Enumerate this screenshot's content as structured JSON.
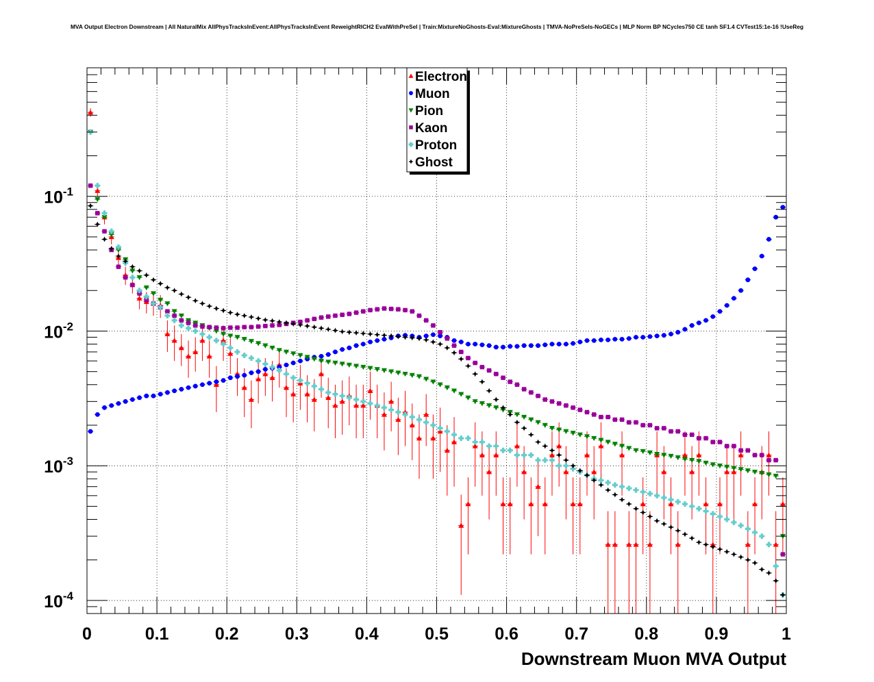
{
  "chart_data": {
    "type": "scatter",
    "title": "MVA Output Electron Downstream | All NaturalMix AllPhysTracksInEvent:AllPhysTracksInEvent ReweightRICH2 EvalWithPreSel | Train:MixtureNoGhosts-Eval:MixtureGhosts | TMVA-NoPreSels-NoGECs | MLP Norm BP NCycles750 CE tanh SF1.4 CVTest15:1e-16 !UseReg",
    "xlabel": "Downstream Muon MVA Output",
    "ylabel": "",
    "xlim": [
      0,
      1
    ],
    "ylim": [
      8e-05,
      0.9
    ],
    "y_scale": "log",
    "grid": true,
    "legend_position": "top-center",
    "x_tick_labels": [
      "0",
      "0.1",
      "0.2",
      "0.3",
      "0.4",
      "0.5",
      "0.6",
      "0.7",
      "0.8",
      "0.9",
      "1"
    ],
    "y_tick_labels": [
      {
        "base": "10",
        "exp": "-1",
        "value": 0.1
      },
      {
        "base": "10",
        "exp": "-2",
        "value": 0.01
      },
      {
        "base": "10",
        "exp": "-3",
        "value": 0.001
      },
      {
        "base": "10",
        "exp": "-4",
        "value": 0.0001
      }
    ],
    "x": [
      0.005,
      0.015,
      0.025,
      0.035,
      0.045,
      0.055,
      0.065,
      0.075,
      0.085,
      0.095,
      0.105,
      0.115,
      0.125,
      0.135,
      0.145,
      0.155,
      0.165,
      0.175,
      0.185,
      0.195,
      0.205,
      0.215,
      0.225,
      0.235,
      0.245,
      0.255,
      0.265,
      0.275,
      0.285,
      0.295,
      0.305,
      0.315,
      0.325,
      0.335,
      0.345,
      0.355,
      0.365,
      0.375,
      0.385,
      0.395,
      0.405,
      0.415,
      0.425,
      0.435,
      0.445,
      0.455,
      0.465,
      0.475,
      0.485,
      0.495,
      0.505,
      0.515,
      0.525,
      0.535,
      0.545,
      0.555,
      0.565,
      0.575,
      0.585,
      0.595,
      0.605,
      0.615,
      0.625,
      0.635,
      0.645,
      0.655,
      0.665,
      0.675,
      0.685,
      0.695,
      0.705,
      0.715,
      0.725,
      0.735,
      0.745,
      0.755,
      0.765,
      0.775,
      0.785,
      0.795,
      0.805,
      0.815,
      0.825,
      0.835,
      0.845,
      0.855,
      0.865,
      0.875,
      0.885,
      0.895,
      0.905,
      0.915,
      0.925,
      0.935,
      0.945,
      0.955,
      0.965,
      0.975,
      0.985,
      0.995
    ],
    "series": [
      {
        "name": "Electron",
        "color": "#ff0000",
        "marker": "triangle-up",
        "values": [
          0.42,
          0.11,
          0.07,
          0.05,
          0.035,
          0.026,
          0.022,
          0.0175,
          0.0165,
          0.016,
          0.0155,
          0.0095,
          0.0085,
          0.0075,
          0.0065,
          0.007,
          0.0085,
          0.0065,
          0.004,
          0.0085,
          0.0068,
          0.0048,
          0.0038,
          0.0031,
          0.0044,
          0.0048,
          0.0045,
          0.0056,
          0.0038,
          0.0034,
          0.0041,
          0.0034,
          0.0031,
          0.0048,
          0.0032,
          0.0028,
          0.003,
          0.0033,
          0.0028,
          0.0028,
          0.0036,
          0.0028,
          0.0024,
          0.003,
          0.0022,
          0.0025,
          0.002,
          0.0016,
          0.0024,
          0.0016,
          0.0018,
          0.0013,
          0.0015,
          0.00036,
          0.00052,
          0.0014,
          0.0012,
          0.0009,
          0.0012,
          0.00052,
          0.00052,
          0.0014,
          0.0009,
          0.00052,
          0.0007,
          0.00052,
          0.0012,
          0.0014,
          0.0009,
          0.00052,
          0.00052,
          0.0012,
          0.0009,
          0.0014,
          0.00026,
          0.00026,
          0.0012,
          0.00026,
          0.00026,
          0.00052,
          0.00026,
          0.0012,
          0.0009,
          0.00052,
          0.00026,
          0.0012,
          0.0009,
          0.0012,
          0.00052,
          0.00026,
          0.00052,
          0.0009,
          0.0009,
          0.0012,
          0.00026,
          0.00052,
          0.0009,
          0.0012,
          0.00026,
          0.00052
        ],
        "errors": [
          0.03,
          0.01,
          0.008,
          0.006,
          0.005,
          0.004,
          0.003,
          0.003,
          0.003,
          0.003,
          0.003,
          0.0025,
          0.0025,
          0.002,
          0.002,
          0.002,
          0.0025,
          0.002,
          0.0015,
          0.0025,
          0.002,
          0.0015,
          0.0015,
          0.0012,
          0.0015,
          0.0015,
          0.0015,
          0.0018,
          0.0015,
          0.0013,
          0.0015,
          0.0013,
          0.0013,
          0.0016,
          0.0013,
          0.0012,
          0.0013,
          0.0013,
          0.0012,
          0.0012,
          0.0014,
          0.0012,
          0.0011,
          0.0012,
          0.001,
          0.0011,
          0.0009,
          0.0008,
          0.001,
          0.0008,
          0.0009,
          0.0007,
          0.0008,
          0.00025,
          0.0003,
          0.0007,
          0.0006,
          0.0005,
          0.0006,
          0.0003,
          0.0003,
          0.0007,
          0.0005,
          0.0003,
          0.0004,
          0.0003,
          0.0006,
          0.0007,
          0.0005,
          0.0003,
          0.0003,
          0.0006,
          0.0005,
          0.0007,
          0.0002,
          0.0002,
          0.0006,
          0.0002,
          0.0002,
          0.0003,
          0.0002,
          0.0006,
          0.0005,
          0.0003,
          0.0002,
          0.0006,
          0.0005,
          0.0006,
          0.0003,
          0.0002,
          0.0003,
          0.0005,
          0.0005,
          0.0006,
          0.0002,
          0.0003,
          0.0005,
          0.0006,
          0.0002,
          0.0003
        ]
      },
      {
        "name": "Muon",
        "color": "#0000ff",
        "marker": "circle",
        "values": [
          0.0018,
          0.0024,
          0.0027,
          0.0028,
          0.0029,
          0.003,
          0.0031,
          0.0032,
          0.0033,
          0.0033,
          0.0034,
          0.0035,
          0.0036,
          0.0037,
          0.0038,
          0.0039,
          0.004,
          0.0041,
          0.0042,
          0.0043,
          0.0045,
          0.0046,
          0.0047,
          0.0049,
          0.005,
          0.0052,
          0.0053,
          0.0054,
          0.0056,
          0.0058,
          0.006,
          0.0062,
          0.0064,
          0.0065,
          0.0067,
          0.007,
          0.0073,
          0.0075,
          0.0078,
          0.008,
          0.0083,
          0.0085,
          0.0087,
          0.0089,
          0.0092,
          0.0093,
          0.0092,
          0.009,
          0.0092,
          0.0094,
          0.0092,
          0.009,
          0.0085,
          0.0083,
          0.008,
          0.008,
          0.0079,
          0.0078,
          0.0076,
          0.0076,
          0.0077,
          0.0077,
          0.0078,
          0.0078,
          0.0078,
          0.0079,
          0.008,
          0.008,
          0.008,
          0.0081,
          0.0083,
          0.0085,
          0.0085,
          0.0086,
          0.0086,
          0.0087,
          0.0087,
          0.0088,
          0.009,
          0.009,
          0.0091,
          0.0092,
          0.0093,
          0.0095,
          0.0098,
          0.0103,
          0.011,
          0.0115,
          0.012,
          0.0128,
          0.014,
          0.0155,
          0.0175,
          0.02,
          0.024,
          0.029,
          0.036,
          0.048,
          0.07,
          0.083
        ]
      },
      {
        "name": "Pion",
        "color": "#008000",
        "marker": "triangle-down",
        "values": [
          0.3,
          0.095,
          0.07,
          0.052,
          0.04,
          0.034,
          0.028,
          0.025,
          0.021,
          0.019,
          0.017,
          0.016,
          0.014,
          0.013,
          0.012,
          0.0115,
          0.011,
          0.0105,
          0.01,
          0.0095,
          0.0092,
          0.009,
          0.0087,
          0.0084,
          0.0081,
          0.0078,
          0.0075,
          0.0072,
          0.007,
          0.0068,
          0.0066,
          0.0064,
          0.0062,
          0.006,
          0.0059,
          0.0058,
          0.0057,
          0.0056,
          0.0055,
          0.0054,
          0.0053,
          0.0052,
          0.0051,
          0.005,
          0.0049,
          0.0048,
          0.0047,
          0.0046,
          0.0044,
          0.0042,
          0.004,
          0.0038,
          0.0036,
          0.0034,
          0.0032,
          0.003,
          0.0029,
          0.0028,
          0.0027,
          0.0026,
          0.0025,
          0.0024,
          0.0023,
          0.0022,
          0.0021,
          0.002,
          0.0019,
          0.00185,
          0.0018,
          0.00175,
          0.0017,
          0.00165,
          0.0016,
          0.00155,
          0.0015,
          0.00145,
          0.0014,
          0.00135,
          0.0013,
          0.00128,
          0.00125,
          0.00122,
          0.0012,
          0.00118,
          0.00115,
          0.00112,
          0.0011,
          0.00108,
          0.00105,
          0.00102,
          0.001,
          0.00098,
          0.00096,
          0.00094,
          0.00092,
          0.0009,
          0.00088,
          0.00086,
          0.00084,
          0.0003
        ]
      },
      {
        "name": "Kaon",
        "color": "#990099",
        "marker": "square",
        "values": [
          0.12,
          0.075,
          0.055,
          0.04,
          0.03,
          0.025,
          0.022,
          0.019,
          0.017,
          0.016,
          0.015,
          0.014,
          0.013,
          0.012,
          0.0115,
          0.011,
          0.0108,
          0.0107,
          0.0106,
          0.0105,
          0.0106,
          0.0106,
          0.0107,
          0.0107,
          0.0108,
          0.0109,
          0.011,
          0.0111,
          0.0113,
          0.0115,
          0.0117,
          0.012,
          0.0123,
          0.0126,
          0.0128,
          0.013,
          0.0132,
          0.0134,
          0.0137,
          0.014,
          0.0143,
          0.0145,
          0.0147,
          0.0146,
          0.0145,
          0.0143,
          0.014,
          0.013,
          0.012,
          0.011,
          0.0098,
          0.0088,
          0.0078,
          0.007,
          0.0063,
          0.0058,
          0.0054,
          0.0051,
          0.0048,
          0.0045,
          0.0042,
          0.004,
          0.0037,
          0.0035,
          0.0033,
          0.0031,
          0.003,
          0.0029,
          0.0028,
          0.0027,
          0.0026,
          0.0025,
          0.0024,
          0.0023,
          0.0023,
          0.0022,
          0.0022,
          0.0021,
          0.0021,
          0.002,
          0.002,
          0.0019,
          0.0019,
          0.0018,
          0.0018,
          0.0017,
          0.0017,
          0.0016,
          0.0016,
          0.0015,
          0.0015,
          0.0014,
          0.0014,
          0.0013,
          0.0013,
          0.0012,
          0.0012,
          0.0011,
          0.0011,
          0.00022
        ]
      },
      {
        "name": "Proton",
        "color": "#66cccc",
        "marker": "plus",
        "values": [
          0.3,
          0.12,
          0.075,
          0.055,
          0.042,
          0.032,
          0.025,
          0.02,
          0.018,
          0.016,
          0.015,
          0.013,
          0.012,
          0.011,
          0.0105,
          0.01,
          0.0095,
          0.009,
          0.0085,
          0.008,
          0.0075,
          0.007,
          0.0066,
          0.0063,
          0.006,
          0.0057,
          0.0054,
          0.0051,
          0.0048,
          0.0045,
          0.0043,
          0.0041,
          0.0039,
          0.0037,
          0.0035,
          0.0034,
          0.0033,
          0.0032,
          0.0031,
          0.003,
          0.0029,
          0.0028,
          0.0027,
          0.0026,
          0.0025,
          0.0024,
          0.0023,
          0.0022,
          0.0021,
          0.002,
          0.0019,
          0.0018,
          0.0017,
          0.0016,
          0.0016,
          0.0015,
          0.0015,
          0.0014,
          0.0014,
          0.0013,
          0.0013,
          0.0012,
          0.0012,
          0.0012,
          0.0011,
          0.0011,
          0.0011,
          0.001,
          0.001,
          0.00095,
          0.0009,
          0.00085,
          0.0008,
          0.00078,
          0.00075,
          0.00072,
          0.0007,
          0.00068,
          0.00066,
          0.00064,
          0.00062,
          0.0006,
          0.00058,
          0.00056,
          0.00054,
          0.00052,
          0.0005,
          0.00048,
          0.00046,
          0.00044,
          0.00042,
          0.0004,
          0.00038,
          0.00036,
          0.00034,
          0.00032,
          0.0003,
          0.00026,
          0.00018,
          0.00011
        ]
      },
      {
        "name": "Ghost",
        "color": "#000000",
        "marker": "star",
        "values": [
          0.085,
          0.062,
          0.048,
          0.041,
          0.036,
          0.033,
          0.03,
          0.028,
          0.026,
          0.024,
          0.0225,
          0.021,
          0.02,
          0.0188,
          0.0178,
          0.0168,
          0.016,
          0.0153,
          0.0147,
          0.0142,
          0.0137,
          0.0133,
          0.013,
          0.0127,
          0.0124,
          0.0121,
          0.0119,
          0.0117,
          0.0115,
          0.0113,
          0.0111,
          0.0109,
          0.0107,
          0.0105,
          0.0103,
          0.0101,
          0.0099,
          0.0098,
          0.0097,
          0.0096,
          0.0095,
          0.0094,
          0.0093,
          0.0092,
          0.0091,
          0.009,
          0.0089,
          0.0088,
          0.0086,
          0.0083,
          0.008,
          0.0075,
          0.0069,
          0.0062,
          0.0055,
          0.0048,
          0.0042,
          0.0036,
          0.0031,
          0.0027,
          0.0024,
          0.0021,
          0.0019,
          0.0017,
          0.0015,
          0.0014,
          0.0013,
          0.0012,
          0.0011,
          0.001,
          0.00092,
          0.00085,
          0.00078,
          0.00072,
          0.00066,
          0.00061,
          0.00056,
          0.00052,
          0.00048,
          0.00045,
          0.00042,
          0.00039,
          0.00037,
          0.00035,
          0.00033,
          0.00031,
          0.00029,
          0.00027,
          0.00026,
          0.00025,
          0.00024,
          0.00023,
          0.00022,
          0.00021,
          0.0002,
          0.00019,
          0.00017,
          0.00016,
          0.00014,
          0.00011
        ]
      }
    ]
  }
}
